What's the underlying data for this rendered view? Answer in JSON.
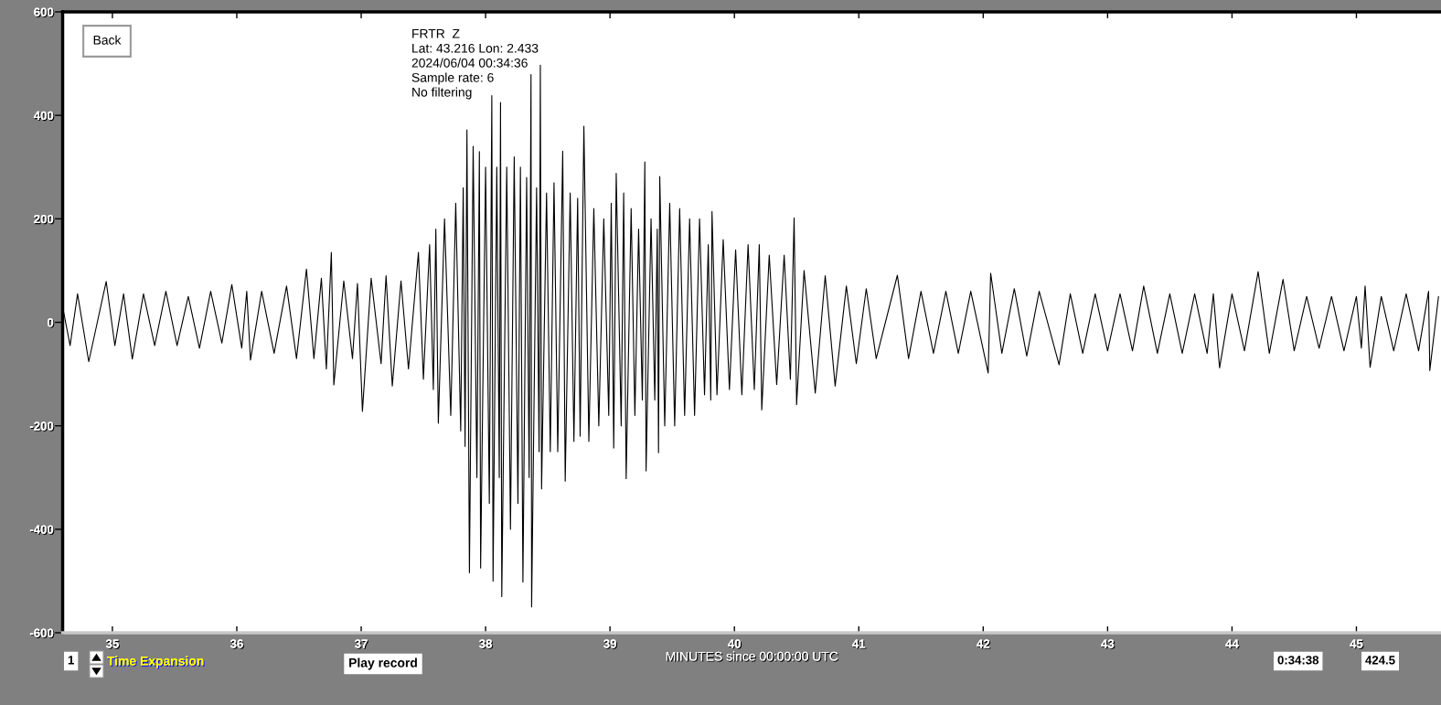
{
  "chart_data": {
    "type": "line",
    "xlabel": "MINUTES since 00:00:00 UTC",
    "color": "#000000",
    "line_style": "solid",
    "grid": false,
    "x": [
      34.6,
      34.66,
      34.72,
      34.81,
      34.95,
      35.02,
      35.09,
      35.16,
      35.25,
      35.34,
      35.43,
      35.52,
      35.61,
      35.7,
      35.79,
      35.88,
      35.96,
      36.04,
      36.08,
      36.11,
      36.2,
      36.3,
      36.4,
      36.48,
      36.56,
      36.62,
      36.68,
      36.72,
      36.76,
      36.78,
      36.86,
      36.93,
      36.97,
      37.01,
      37.08,
      37.16,
      37.2,
      37.25,
      37.32,
      37.38,
      37.46,
      37.5,
      37.55,
      37.58,
      37.6,
      37.62,
      37.67,
      37.72,
      37.76,
      37.8,
      37.82,
      37.835,
      37.85,
      37.87,
      37.9,
      37.93,
      37.95,
      37.96,
      38.0,
      38.03,
      38.05,
      38.06,
      38.09,
      38.11,
      38.12,
      38.13,
      38.17,
      38.2,
      38.23,
      38.26,
      38.28,
      38.3,
      38.33,
      38.35,
      38.365,
      38.37,
      38.41,
      38.43,
      38.44,
      38.45,
      38.49,
      38.52,
      38.55,
      38.58,
      38.62,
      38.64,
      38.68,
      38.71,
      38.74,
      38.76,
      38.79,
      38.83,
      38.87,
      38.91,
      38.95,
      38.99,
      39.01,
      39.03,
      39.05,
      39.09,
      39.11,
      39.13,
      39.17,
      39.2,
      39.23,
      39.26,
      39.28,
      39.29,
      39.33,
      39.36,
      39.38,
      39.39,
      39.4,
      39.44,
      39.48,
      39.52,
      39.56,
      39.6,
      39.64,
      39.68,
      39.72,
      39.76,
      39.79,
      39.81,
      39.82,
      39.86,
      39.91,
      39.96,
      40.01,
      40.06,
      40.11,
      40.16,
      40.2,
      40.22,
      40.28,
      40.34,
      40.4,
      40.45,
      40.48,
      40.5,
      40.56,
      40.65,
      40.73,
      40.81,
      40.9,
      40.98,
      41.06,
      41.14,
      41.31,
      41.4,
      41.5,
      41.6,
      41.7,
      41.8,
      41.9,
      42.04,
      42.06,
      42.15,
      42.25,
      42.35,
      42.45,
      42.61,
      42.7,
      42.8,
      42.9,
      43.0,
      43.1,
      43.2,
      43.29,
      43.4,
      43.5,
      43.6,
      43.7,
      43.8,
      43.85,
      43.9,
      44.0,
      44.1,
      44.21,
      44.3,
      44.41,
      44.5,
      44.6,
      44.7,
      44.8,
      44.9,
      45.0,
      45.04,
      45.07,
      45.11,
      45.2,
      45.3,
      45.4,
      45.5,
      45.58,
      45.59,
      45.66
    ],
    "values": [
      30,
      -45,
      55,
      -76,
      79,
      -45,
      55,
      -71,
      55,
      -45,
      60,
      -45,
      50,
      -50,
      60,
      -40,
      73,
      -50,
      60,
      -73,
      60,
      -60,
      70,
      -70,
      103,
      -70,
      85,
      -90,
      135,
      -121,
      80,
      -70,
      75,
      -172,
      85,
      -80,
      90,
      -123,
      80,
      -90,
      135,
      -110,
      150,
      -130,
      180,
      -195,
      200,
      -180,
      230,
      -210,
      260,
      -240,
      372,
      -484,
      340,
      -300,
      330,
      -475,
      300,
      -350,
      438,
      -500,
      300,
      -300,
      425,
      -530,
      300,
      -400,
      320,
      -350,
      300,
      -502,
      280,
      -300,
      479,
      -550,
      260,
      -250,
      497,
      -322,
      250,
      -250,
      270,
      -250,
      331,
      -307,
      250,
      -230,
      240,
      -220,
      379,
      -230,
      220,
      -200,
      200,
      -180,
      230,
      -243,
      288,
      -200,
      250,
      -302,
      220,
      -180,
      180,
      -150,
      310,
      -287,
      200,
      -150,
      180,
      -252,
      282,
      -200,
      230,
      -200,
      220,
      -180,
      200,
      -180,
      200,
      -140,
      150,
      -150,
      214,
      -140,
      160,
      -130,
      140,
      -140,
      150,
      -130,
      150,
      -169,
      130,
      -120,
      130,
      -110,
      202,
      -159,
      100,
      -137,
      90,
      -123,
      70,
      -80,
      65,
      -70,
      91,
      -70,
      60,
      -60,
      60,
      -60,
      60,
      -98,
      95,
      -60,
      65,
      -65,
      60,
      -82,
      55,
      -60,
      55,
      -55,
      55,
      -55,
      70,
      -60,
      55,
      -60,
      55,
      -60,
      55,
      -88,
      55,
      -55,
      98,
      -60,
      83,
      -55,
      50,
      -50,
      50,
      -55,
      50,
      -50,
      70,
      -87,
      50,
      -55,
      55,
      -55,
      60,
      -93,
      50
    ],
    "xlim": [
      34.6,
      45.68
    ],
    "ylim": [
      -600,
      600
    ],
    "xticks": [
      35,
      36,
      37,
      38,
      39,
      40,
      41,
      42,
      43,
      44,
      45
    ],
    "yticks": [
      -600,
      -400,
      -200,
      0,
      200,
      400,
      600
    ],
    "annotations": [
      "FRTR  Z",
      "Lat: 43.216 Lon: 2.433",
      "2024/06/04 00:34:36",
      "Sample rate: 6",
      "No filtering",
      "Back",
      "1",
      "Time Expansion",
      "Play record",
      "0:34:38",
      "424.5"
    ]
  }
}
